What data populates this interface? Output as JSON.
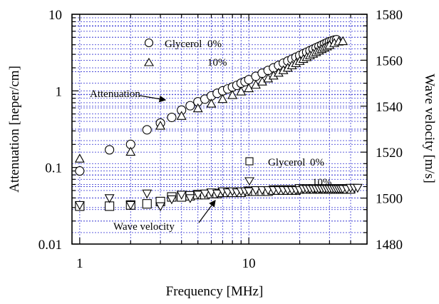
{
  "chart_data": {
    "type": "scatter",
    "xlabel": "Frequency [MHz]",
    "ylabel_left": "Attenuation [neper/cm]",
    "ylabel_right": "Wave velocity [m/s]",
    "x_scale": "log",
    "y_left_scale": "log",
    "xlim": [
      0.9,
      50
    ],
    "ylim_left": [
      0.01,
      10
    ],
    "ylim_right": [
      1480,
      1580
    ],
    "x_ticks": [
      {
        "value": 1,
        "label": "1"
      },
      {
        "value": 10,
        "label": "10"
      }
    ],
    "y_left_ticks": [
      {
        "value": 0.01,
        "label": "0.01"
      },
      {
        "value": 0.1,
        "label": "0.1"
      },
      {
        "value": 1,
        "label": "1"
      },
      {
        "value": 10,
        "label": "10"
      }
    ],
    "y_right_ticks": [
      {
        "value": 1480,
        "label": "1480"
      },
      {
        "value": 1500,
        "label": "1500"
      },
      {
        "value": 1520,
        "label": "1520"
      },
      {
        "value": 1540,
        "label": "1540"
      },
      {
        "value": 1560,
        "label": "1560"
      },
      {
        "value": 1580,
        "label": "1580"
      }
    ],
    "grid": true,
    "annotations": {
      "attenuation": "Attenuation",
      "wave_velocity": "Wave velocity"
    },
    "legends": {
      "attenuation": {
        "title": "Glycerol",
        "entries": [
          "0%",
          "10%"
        ]
      },
      "velocity": {
        "title": "Glycerol",
        "entries": [
          "0%",
          "10%"
        ]
      }
    },
    "series": [
      {
        "marker": "circle",
        "axis": "left",
        "points": [
          [
            1.0,
            0.09
          ],
          [
            1.5,
            0.17
          ],
          [
            2.0,
            0.2
          ],
          [
            2.5,
            0.31
          ],
          [
            3.0,
            0.38
          ],
          [
            3.5,
            0.45
          ],
          [
            4.0,
            0.56
          ],
          [
            4.5,
            0.64
          ],
          [
            5.0,
            0.72
          ],
          [
            5.5,
            0.78
          ],
          [
            6.0,
            0.86
          ],
          [
            6.5,
            0.93
          ],
          [
            7.0,
            1.0
          ],
          [
            7.5,
            1.06
          ],
          [
            8.0,
            1.12
          ],
          [
            8.5,
            1.18
          ],
          [
            9.0,
            1.26
          ],
          [
            9.5,
            1.32
          ],
          [
            10.0,
            1.4
          ],
          [
            11,
            1.55
          ],
          [
            12,
            1.7
          ],
          [
            13,
            1.85
          ],
          [
            14,
            2.0
          ],
          [
            15,
            2.15
          ],
          [
            16,
            2.3
          ],
          [
            17,
            2.45
          ],
          [
            18,
            2.6
          ],
          [
            19,
            2.75
          ],
          [
            20,
            2.9
          ],
          [
            21,
            3.05
          ],
          [
            22,
            3.2
          ],
          [
            23,
            3.35
          ],
          [
            24,
            3.5
          ],
          [
            25,
            3.65
          ],
          [
            26,
            3.8
          ],
          [
            27,
            3.95
          ],
          [
            28,
            4.1
          ],
          [
            29,
            4.25
          ],
          [
            30,
            4.4
          ],
          [
            31,
            4.5
          ],
          [
            32,
            4.6
          ],
          [
            33,
            4.65
          ]
        ]
      },
      {
        "marker": "triangle-up",
        "axis": "left",
        "points": [
          [
            1.0,
            0.13
          ],
          [
            2.0,
            0.16
          ],
          [
            3.0,
            0.35
          ],
          [
            4.0,
            0.47
          ],
          [
            5.0,
            0.59
          ],
          [
            6.0,
            0.68
          ],
          [
            7.0,
            0.78
          ],
          [
            8.0,
            0.88
          ],
          [
            9.0,
            0.98
          ],
          [
            10.0,
            1.08
          ],
          [
            11,
            1.2
          ],
          [
            12,
            1.32
          ],
          [
            13,
            1.45
          ],
          [
            14,
            1.58
          ],
          [
            15,
            1.72
          ],
          [
            16,
            1.86
          ],
          [
            17,
            2.0
          ],
          [
            18,
            2.15
          ],
          [
            19,
            2.3
          ],
          [
            20,
            2.45
          ],
          [
            21,
            2.6
          ],
          [
            22,
            2.75
          ],
          [
            23,
            2.9
          ],
          [
            24,
            3.05
          ],
          [
            25,
            3.2
          ],
          [
            26,
            3.35
          ],
          [
            27,
            3.5
          ],
          [
            28,
            3.65
          ],
          [
            29,
            3.8
          ],
          [
            30,
            3.95
          ],
          [
            32,
            4.2
          ],
          [
            34,
            4.4
          ],
          [
            36,
            4.45
          ]
        ]
      },
      {
        "marker": "square",
        "axis": "right",
        "points": [
          [
            1.0,
            1496.5
          ],
          [
            1.5,
            1496.5
          ],
          [
            2.0,
            1497.0
          ],
          [
            2.5,
            1497.5
          ],
          [
            3.0,
            1498.5
          ],
          [
            3.5,
            1500.5
          ],
          [
            4.0,
            1500.5
          ],
          [
            4.5,
            1501.0
          ],
          [
            5.0,
            1501.5
          ],
          [
            5.5,
            1501.5
          ],
          [
            6.0,
            1502.0
          ],
          [
            6.5,
            1502.0
          ],
          [
            7.0,
            1502.5
          ],
          [
            7.5,
            1502.5
          ],
          [
            8.0,
            1502.5
          ],
          [
            9.0,
            1502.5
          ],
          [
            10.0,
            1503.0
          ],
          [
            11,
            1503.0
          ],
          [
            12,
            1503.0
          ],
          [
            13,
            1503.0
          ],
          [
            14,
            1503.5
          ],
          [
            15,
            1503.5
          ],
          [
            16,
            1503.5
          ],
          [
            17,
            1503.5
          ],
          [
            18,
            1503.5
          ],
          [
            19,
            1503.5
          ],
          [
            20,
            1504.0
          ],
          [
            22,
            1504.0
          ],
          [
            24,
            1504.0
          ],
          [
            26,
            1504.0
          ],
          [
            28,
            1504.0
          ],
          [
            30,
            1504.0
          ],
          [
            32,
            1504.0
          ],
          [
            34,
            1504.0
          ],
          [
            36,
            1504.0
          ],
          [
            38,
            1504.0
          ],
          [
            40,
            1504.0
          ]
        ]
      },
      {
        "marker": "triangle-down",
        "axis": "right",
        "points": [
          [
            1.0,
            1497.0
          ],
          [
            1.5,
            1500.0
          ],
          [
            2.0,
            1497.0
          ],
          [
            2.5,
            1502.0
          ],
          [
            3.0,
            1496.5
          ],
          [
            3.5,
            1499.5
          ],
          [
            4.0,
            1501.5
          ],
          [
            4.5,
            1500.0
          ],
          [
            5.0,
            1501.5
          ],
          [
            5.5,
            1502.0
          ],
          [
            6.0,
            1502.5
          ],
          [
            6.5,
            1502.0
          ],
          [
            7.0,
            1503.0
          ],
          [
            7.5,
            1502.5
          ],
          [
            8.0,
            1503.0
          ],
          [
            8.5,
            1502.5
          ],
          [
            9.0,
            1503.0
          ],
          [
            9.5,
            1503.0
          ],
          [
            10.0,
            1503.0
          ],
          [
            11,
            1503.5
          ],
          [
            12,
            1503.5
          ],
          [
            13,
            1503.5
          ],
          [
            14,
            1503.5
          ],
          [
            15,
            1503.5
          ],
          [
            16,
            1503.5
          ],
          [
            17,
            1503.5
          ],
          [
            18,
            1503.5
          ],
          [
            19,
            1503.5
          ],
          [
            20,
            1503.5
          ],
          [
            21,
            1504.0
          ],
          [
            22,
            1504.0
          ],
          [
            23,
            1504.0
          ],
          [
            24,
            1504.0
          ],
          [
            25,
            1504.0
          ],
          [
            26,
            1504.0
          ],
          [
            27,
            1504.0
          ],
          [
            28,
            1504.0
          ],
          [
            29,
            1504.0
          ],
          [
            30,
            1504.0
          ],
          [
            31,
            1504.0
          ],
          [
            32,
            1504.0
          ],
          [
            33,
            1504.0
          ],
          [
            34,
            1504.0
          ],
          [
            35,
            1504.0
          ],
          [
            36,
            1504.0
          ],
          [
            38,
            1504.0
          ],
          [
            40,
            1504.5
          ],
          [
            42,
            1504.5
          ],
          [
            44,
            1504.5
          ]
        ]
      }
    ]
  }
}
